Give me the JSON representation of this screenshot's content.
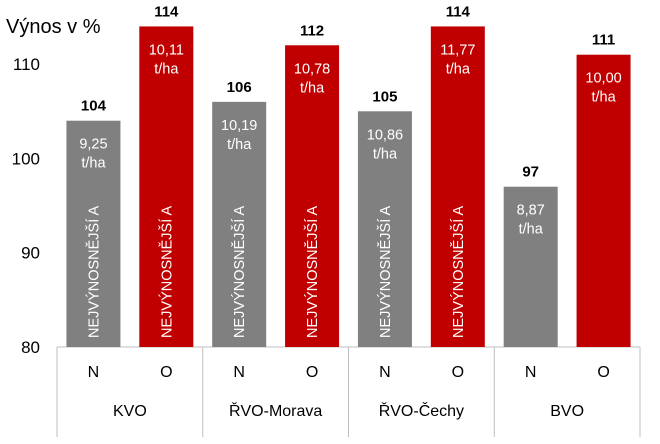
{
  "chart_data": {
    "type": "bar",
    "ylabel": "Výnos v %",
    "ylim": [
      80,
      115
    ],
    "yticks": [
      80,
      90,
      100,
      110
    ],
    "grid": false,
    "legend": "none",
    "colors": {
      "N": "#808080",
      "O": "#c00000"
    },
    "groups": [
      {
        "name": "KVO",
        "bars": [
          {
            "category": "N",
            "value": 104,
            "label": "104",
            "yield": "9,25",
            "unit": "t/ha",
            "vertical_label": "NEJVÝNOSNĚJŠÍ A"
          },
          {
            "category": "O",
            "value": 114,
            "label": "114",
            "yield": "10,11",
            "unit": "t/ha",
            "vertical_label": "NEJVÝNOSNĚJŠÍ A"
          }
        ]
      },
      {
        "name": "ŘVO-Morava",
        "bars": [
          {
            "category": "N",
            "value": 106,
            "label": "106",
            "yield": "10,19",
            "unit": "t/ha",
            "vertical_label": "NEJVÝNOSNĚJŠÍ A"
          },
          {
            "category": "O",
            "value": 112,
            "label": "112",
            "yield": "10,78",
            "unit": "t/ha",
            "vertical_label": "NEJVÝNOSNĚJŠÍ A"
          }
        ]
      },
      {
        "name": "ŘVO-Čechy",
        "bars": [
          {
            "category": "N",
            "value": 105,
            "label": "105",
            "yield": "10,86",
            "unit": "t/ha",
            "vertical_label": "NEJVÝNOSNĚJŠÍ A"
          },
          {
            "category": "O",
            "value": 114,
            "label": "114",
            "yield": "11,77",
            "unit": "t/ha",
            "vertical_label": "NEJVÝNOSNĚJŠÍ A"
          }
        ]
      },
      {
        "name": "BVO",
        "bars": [
          {
            "category": "N",
            "value": 97,
            "label": "97",
            "yield": "8,87",
            "unit": "t/ha",
            "vertical_label": ""
          },
          {
            "category": "O",
            "value": 111,
            "label": "111",
            "yield": "10,00",
            "unit": "t/ha",
            "vertical_label": ""
          }
        ]
      }
    ]
  }
}
